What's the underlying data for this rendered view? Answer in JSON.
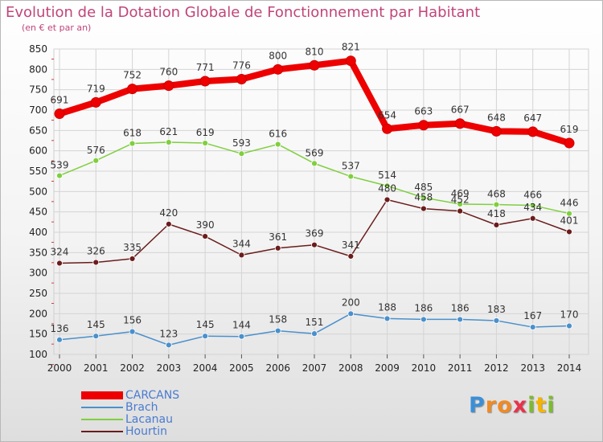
{
  "title": "Evolution de la Dotation Globale de Fonctionnement par Habitant",
  "subtitle": "(en € et par an)",
  "logo": {
    "text": "Proxiti",
    "letters": [
      {
        "ch": "P",
        "color": "#3b8fd8"
      },
      {
        "ch": "r",
        "color": "#f08a24"
      },
      {
        "ch": "o",
        "color": "#f08a24"
      },
      {
        "ch": "x",
        "color": "#e8334a"
      },
      {
        "ch": "i",
        "color": "#7dbb2e"
      },
      {
        "ch": "t",
        "color": "#f5b400"
      },
      {
        "ch": "i",
        "color": "#7dbb2e"
      }
    ]
  },
  "chart_data": {
    "type": "line",
    "title": "Evolution de la Dotation Globale de Fonctionnement par Habitant",
    "subtitle": "(en € et par an)",
    "xlabel": "",
    "ylabel": "",
    "x": [
      "2000",
      "2001",
      "2002",
      "2003",
      "2004",
      "2005",
      "2006",
      "2007",
      "2008",
      "2009",
      "2010",
      "2011",
      "2012",
      "2013",
      "2014"
    ],
    "ylim": [
      100,
      850
    ],
    "yticks": [
      100,
      150,
      200,
      250,
      300,
      350,
      400,
      450,
      500,
      550,
      600,
      650,
      700,
      750,
      800,
      850
    ],
    "grid": true,
    "legend_position": "bottom-left",
    "series": [
      {
        "name": "CARCANS",
        "color": "#ee0000",
        "values": [
          691,
          719,
          752,
          760,
          771,
          776,
          800,
          810,
          821,
          654,
          663,
          667,
          648,
          647,
          619
        ]
      },
      {
        "name": "Brach",
        "color": "#4a90cc",
        "values": [
          136,
          145,
          156,
          123,
          145,
          144,
          158,
          151,
          200,
          188,
          186,
          186,
          183,
          167,
          170
        ]
      },
      {
        "name": "Lacanau",
        "color": "#7fcf3f",
        "values": [
          539,
          576,
          618,
          621,
          619,
          593,
          616,
          569,
          537,
          514,
          485,
          469,
          468,
          466,
          446
        ]
      },
      {
        "name": "Hourtin",
        "color": "#6b1c1c",
        "values": [
          324,
          326,
          335,
          420,
          390,
          344,
          361,
          369,
          341,
          480,
          458,
          452,
          418,
          434,
          401
        ]
      }
    ]
  }
}
